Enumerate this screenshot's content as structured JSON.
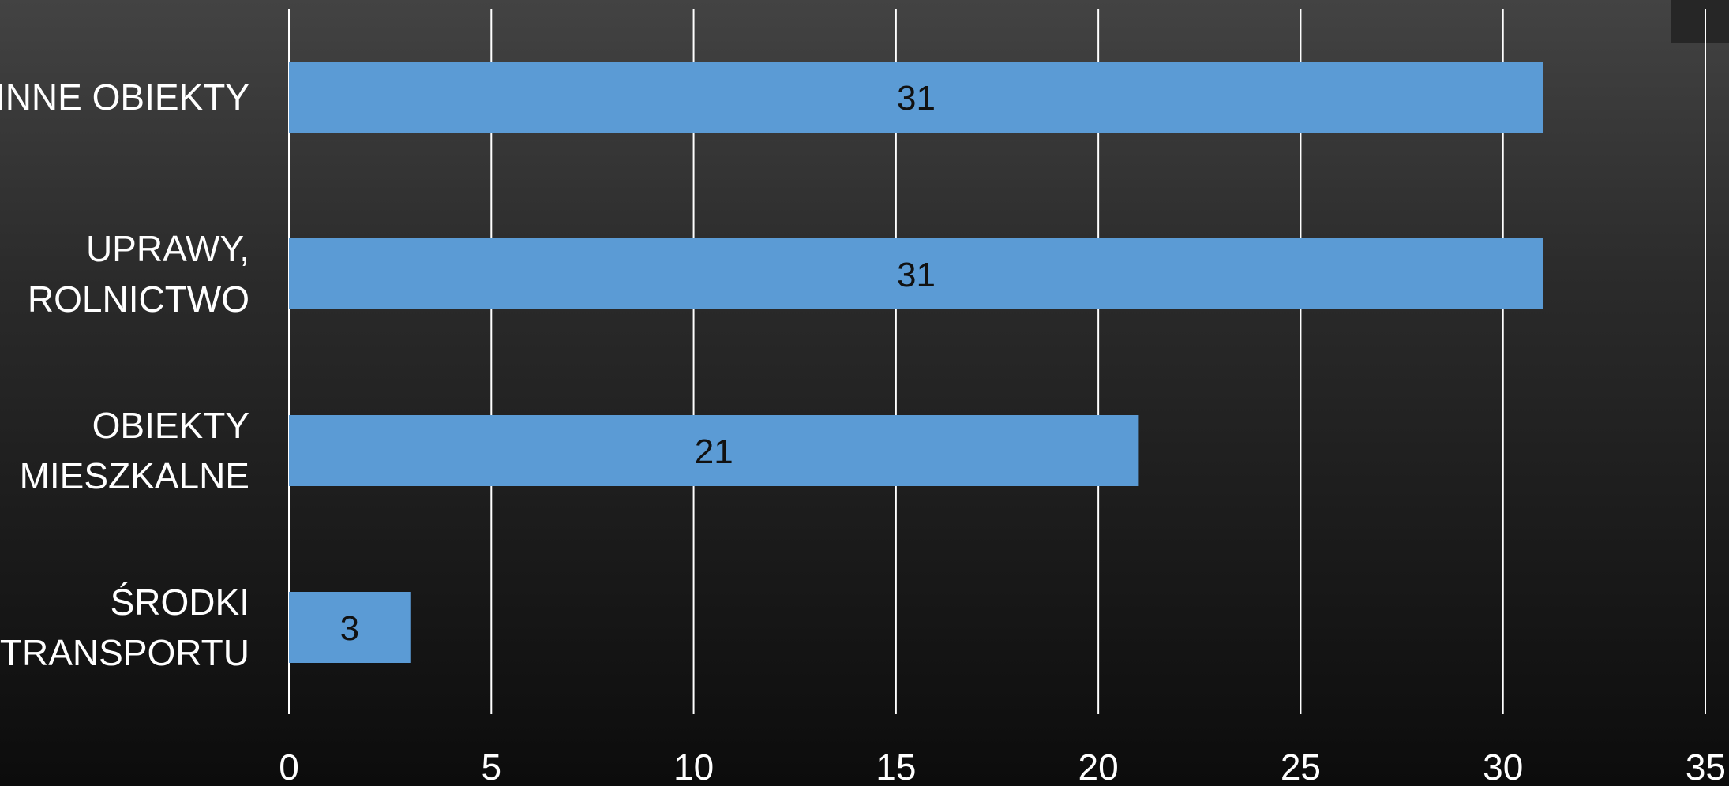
{
  "chart_data": {
    "type": "bar",
    "orientation": "horizontal",
    "categories": [
      [
        "INNE OBIEKTY"
      ],
      [
        "UPRAWY,",
        "ROLNICTWO"
      ],
      [
        "OBIEKTY",
        "MIESZKALNE"
      ],
      [
        "ŚRODKI",
        "TRANSPORTU"
      ]
    ],
    "values": [
      31,
      31,
      21,
      3
    ],
    "data_labels": [
      "31",
      "31",
      "21",
      "3"
    ],
    "xlim": [
      0,
      35
    ],
    "xticks": [
      0,
      5,
      10,
      15,
      20,
      25,
      30,
      35
    ],
    "xtick_labels": [
      "0",
      "5",
      "10",
      "15",
      "20",
      "25",
      "30",
      "35"
    ],
    "grid": true,
    "legend": "none",
    "title": "",
    "xlabel": "",
    "ylabel": ""
  },
  "colors": {
    "bar": "#5b9bd5",
    "grid": "#ffffff",
    "axis_text": "#ffffff",
    "data_label": "#111111"
  }
}
